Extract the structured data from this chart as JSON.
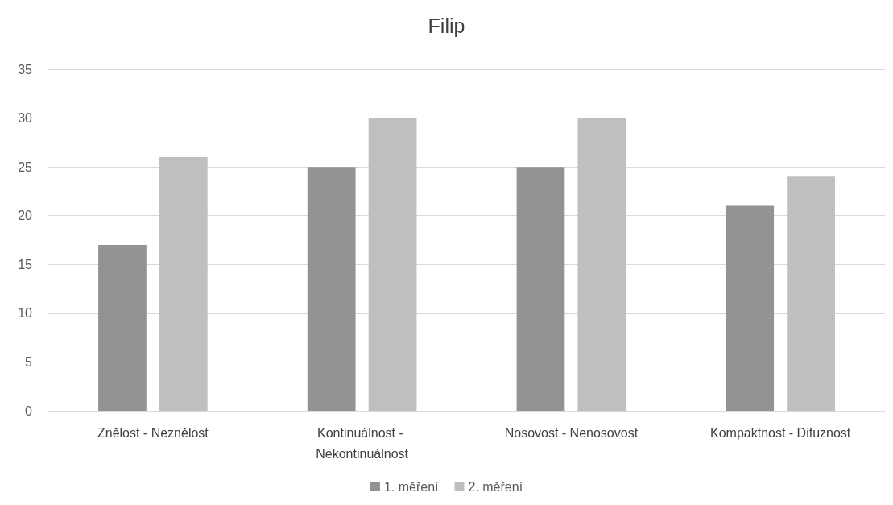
{
  "chart_data": {
    "type": "bar",
    "title": "Filip",
    "categories": [
      "Znělost - Neznělost",
      "Kontinuálnost - Nekontinuálnost",
      "Nosovost - Nenosovost",
      "Kompaktnost - Difuznost"
    ],
    "series": [
      {
        "name": "1. měření",
        "color": "#939393",
        "values": [
          17,
          25,
          25,
          21
        ]
      },
      {
        "name": "2. měření",
        "color": "#bfbfbf",
        "values": [
          26,
          30,
          30,
          24
        ]
      }
    ],
    "ylim": [
      0,
      35
    ],
    "yticks": [
      0,
      5,
      10,
      15,
      20,
      25,
      30,
      35
    ],
    "grid": "y",
    "legend": "bottom"
  }
}
